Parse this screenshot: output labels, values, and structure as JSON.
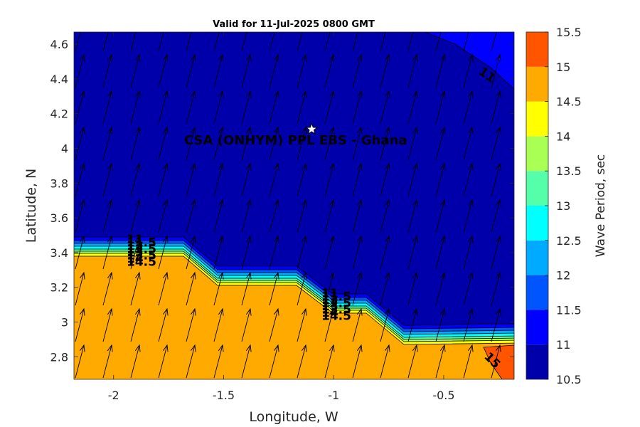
{
  "title": "Valid for 11-Jul-2025 0800 GMT",
  "xlabel": "Longitude, W",
  "ylabel": "Latitude, N",
  "site_label": "CSA (ONHYM) PPL EBS  - Ghana",
  "colorbar_label": "Wave Period, sec",
  "x_ticks": [
    "-2",
    "-1.5",
    "-1",
    "-0.5"
  ],
  "y_ticks": [
    "4.6",
    "4.4",
    "4.2",
    "4",
    "3.8",
    "3.6",
    "3.4",
    "3.2",
    "3",
    "2.8"
  ],
  "colorbar_ticks": [
    "15.5",
    "15",
    "14.5",
    "14",
    "13.5",
    "13",
    "12.5",
    "12",
    "11.5",
    "11",
    "10.5"
  ],
  "contour_labels": {
    "west": [
      "11",
      "11.5",
      "12",
      "12.5",
      "13",
      "13.5",
      "14",
      "14.5"
    ],
    "central": [
      "11",
      "11.5",
      "12",
      "12.5",
      "13",
      "13.5",
      "14",
      "14.5"
    ],
    "ne_corner": "11",
    "se_corner": "15"
  },
  "colors": {
    "c10_5": "#0000AA",
    "c11": "#0000FF",
    "c11_5": "#0055FF",
    "c12": "#00AAFF",
    "c12_5": "#00FFFF",
    "c13": "#55FFAA",
    "c13_5": "#AAFF55",
    "c14": "#FFFF00",
    "c14_5": "#FFAA00",
    "c15": "#FF5500"
  },
  "chart_data": {
    "type": "heatmap",
    "title": "Valid for 11-Jul-2025 0800 GMT",
    "xlabel": "Longitude, W",
    "ylabel": "Latitude, N",
    "xlim": [
      -2.18,
      -0.18
    ],
    "ylim": [
      2.67,
      4.67
    ],
    "colorbar": {
      "label": "Wave Period, sec",
      "range": [
        10.5,
        15.5
      ],
      "step": 0.5
    },
    "site_marker": {
      "x": -1.1,
      "y": 4.11,
      "label": "CSA (ONHYM) PPL EBS  - Ghana"
    },
    "arrows": "direction field over entire map, pointing north-north-east"
  }
}
